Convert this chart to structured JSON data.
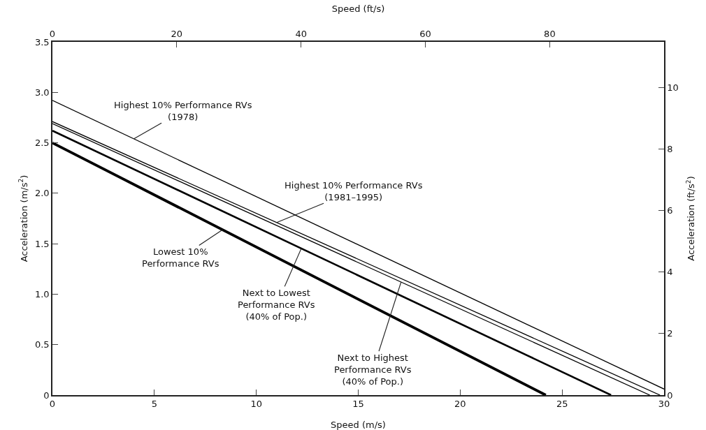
{
  "chart_data": {
    "type": "line",
    "xlabel": "Speed (m/s)",
    "ylabel": "Acceleration (m/s$^{2}$)",
    "x2label": "Speed (ft/s)",
    "y2label": "Acceleration (ft/s$^{2}$)",
    "series": [
      {
        "color": "#000000",
        "x": [
          0,
          30
        ],
        "values": [
          2.92,
          0.06
        ]
      },
      {
        "color": "#000000",
        "x": [
          0,
          29.8
        ],
        "values": [
          2.71,
          0
        ]
      },
      {
        "color": "#000000",
        "x": [
          0,
          29.3
        ],
        "values": [
          2.69,
          0
        ]
      },
      {
        "color": "#000000",
        "x": [
          0,
          27.4
        ],
        "values": [
          2.62,
          0
        ]
      },
      {
        "color": "#000000",
        "x": [
          0,
          24.2
        ],
        "values": [
          2.5,
          0
        ]
      }
    ],
    "xlim": [
      0,
      30
    ],
    "xticks": [
      0,
      5,
      10,
      15,
      20,
      25,
      30
    ],
    "ylim": [
      0,
      3.5
    ],
    "yticks": [
      0,
      {
        "value": 0.5,
        "label": "0.5"
      },
      {
        "value": 1,
        "label": "1.0"
      },
      {
        "value": 1.5,
        "label": "1.5"
      },
      {
        "value": 2,
        "label": "2.0"
      },
      {
        "value": 2.5,
        "label": "2.5"
      },
      {
        "value": 3,
        "label": "3.0"
      },
      {
        "value": 3.5,
        "label": "3.5"
      }
    ],
    "x2lim": [
      0,
      98.4
    ],
    "x2ticks": [
      0,
      20,
      40,
      60,
      80
    ],
    "y2lim": [
      0,
      11.48
    ],
    "y2ticks": [
      0,
      2,
      4,
      6,
      8,
      10
    ],
    "annotations": [
      {
        "text": "Highest 10% Performance RVs\n(1978)",
        "x": 4.0,
        "y": 2.54
      },
      {
        "text": "Highest 10% Performance RVs\n(1981–1995)",
        "x": 11.0,
        "y": 1.71
      },
      {
        "text": "Lowest 10%\nPerformance RVs",
        "x": 8.35,
        "y": 1.64
      },
      {
        "text": "Next to Lowest\nPerformance RVs\n(40% of Pop.)",
        "x": 12.2,
        "y": 1.45
      },
      {
        "text": "Next to Highest\nPerformance RVs\n(40% of Pop.)",
        "x": 17.1,
        "y": 1.12
      }
    ],
    "grid": false,
    "marker": "none",
    "line_style": "solid"
  }
}
